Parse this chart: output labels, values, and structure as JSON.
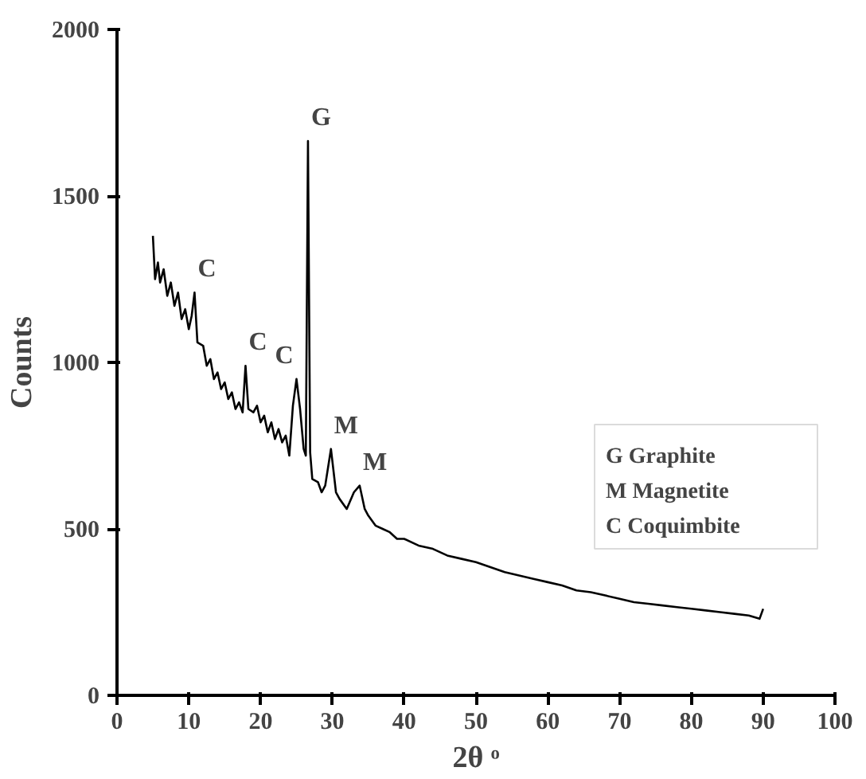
{
  "chart_data": {
    "type": "line",
    "xlabel": "2θ ᵒ",
    "ylabel": "Counts",
    "xlim": [
      0,
      100
    ],
    "xticks": [
      0,
      10,
      20,
      30,
      40,
      50,
      60,
      70,
      80,
      90,
      100
    ],
    "ylim": [
      0,
      2000
    ],
    "yticks": [
      0,
      500,
      1000,
      1500,
      2000
    ],
    "grid": false,
    "marker": "none",
    "line_style": "solid",
    "series": [
      {
        "color": "#000000",
        "x": [
          5,
          5.3,
          5.7,
          6,
          6.5,
          7,
          7.5,
          8,
          8.5,
          9,
          9.5,
          10,
          10.4,
          10.8,
          11.2,
          12,
          12.5,
          13,
          13.5,
          14,
          14.5,
          15,
          15.5,
          16,
          16.5,
          17,
          17.5,
          17.9,
          18.3,
          19,
          19.5,
          20,
          20.5,
          21,
          21.5,
          22,
          22.5,
          23,
          23.5,
          24,
          24.5,
          25,
          25.5,
          26,
          26.3,
          26.6,
          26.9,
          27.2,
          28,
          28.5,
          29,
          29.8,
          30.5,
          31,
          32,
          33,
          33.8,
          34.5,
          35,
          36,
          37,
          38,
          39,
          40,
          42,
          44,
          46,
          48,
          50,
          52,
          54,
          56,
          58,
          60,
          62,
          64,
          66,
          68,
          70,
          72,
          74,
          76,
          78,
          80,
          82,
          84,
          86,
          88,
          89.5,
          90
        ],
        "values": [
          1380,
          1250,
          1300,
          1240,
          1280,
          1200,
          1240,
          1170,
          1210,
          1130,
          1160,
          1100,
          1140,
          1210,
          1060,
          1050,
          990,
          1010,
          950,
          970,
          920,
          940,
          890,
          910,
          860,
          880,
          850,
          990,
          860,
          850,
          870,
          820,
          840,
          790,
          820,
          770,
          800,
          760,
          780,
          720,
          870,
          950,
          860,
          740,
          720,
          1665,
          730,
          650,
          640,
          610,
          630,
          740,
          610,
          590,
          560,
          610,
          630,
          560,
          540,
          510,
          500,
          490,
          470,
          470,
          450,
          440,
          420,
          410,
          400,
          385,
          370,
          360,
          350,
          340,
          330,
          315,
          310,
          300,
          290,
          280,
          275,
          270,
          265,
          260,
          255,
          250,
          245,
          240,
          230,
          260
        ]
      }
    ],
    "annotations": [
      {
        "text": "C",
        "x": 10.8,
        "y": 1210
      },
      {
        "text": "C",
        "x": 17.9,
        "y": 990
      },
      {
        "text": "C",
        "x": 25,
        "y": 950
      },
      {
        "text": "G",
        "x": 26.6,
        "y": 1665
      },
      {
        "text": "M",
        "x": 29.8,
        "y": 740
      },
      {
        "text": "M",
        "x": 33.8,
        "y": 630
      },
      "G  Graphite",
      "M  Magnetite",
      "C  Coquimbite"
    ]
  }
}
